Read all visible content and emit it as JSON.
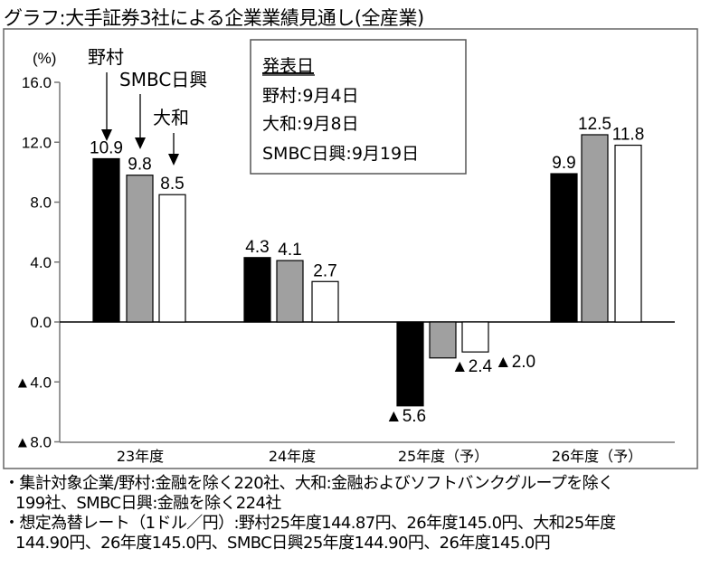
{
  "title": "グラフ:大手証券3社による企業業績見通し(全産業)",
  "chart_data": {
    "type": "bar",
    "title": "グラフ:大手証券3社による企業業績見通し(全産業)",
    "ylabel": "(%)",
    "ylim": [
      -8,
      16
    ],
    "yticks": [
      16,
      12,
      8,
      4,
      0,
      -4,
      -8
    ],
    "ytick_labels": [
      "16.0",
      "12.0",
      "8.0",
      "4.0",
      "0.0",
      "▲4.0",
      "▲8.0"
    ],
    "categories": [
      "23年度",
      "24年度",
      "25年度（予）",
      "26年度（予）"
    ],
    "series": [
      {
        "name": "野村",
        "color": "#000000",
        "values": [
          10.9,
          4.3,
          -5.6,
          9.9
        ],
        "labels": [
          "10.9",
          "4.3",
          "▲5.6",
          "9.9"
        ]
      },
      {
        "name": "SMBC日興",
        "color": "#a0a0a0",
        "values": [
          9.8,
          4.1,
          -2.4,
          12.5
        ],
        "labels": [
          "9.8",
          "4.1",
          "▲2.4",
          "12.5"
        ]
      },
      {
        "name": "大和",
        "color": "#ffffff",
        "values": [
          8.5,
          2.7,
          -2.0,
          11.8
        ],
        "labels": [
          "8.5",
          "2.7",
          "▲2.0",
          "11.8"
        ]
      }
    ],
    "legend": "arrows at first group",
    "grid": false
  },
  "announce": {
    "heading": "発表日",
    "lines": [
      "野村:9月4日",
      "大和:9月8日",
      "SMBC日興:9月19日"
    ]
  },
  "notes": [
    "・集計対象企業/野村:金融を除く220社、大和:金融およびソフトバンクグループを除く",
    "199社、SMBC日興:金融を除く224社",
    "・想定為替レート（1ドル／円）:野村25年度144.87円、26年度145.0円、大和25年度",
    "144.90円、26年度145.0円、SMBC日興25年度144.90円、26年度145.0円"
  ]
}
